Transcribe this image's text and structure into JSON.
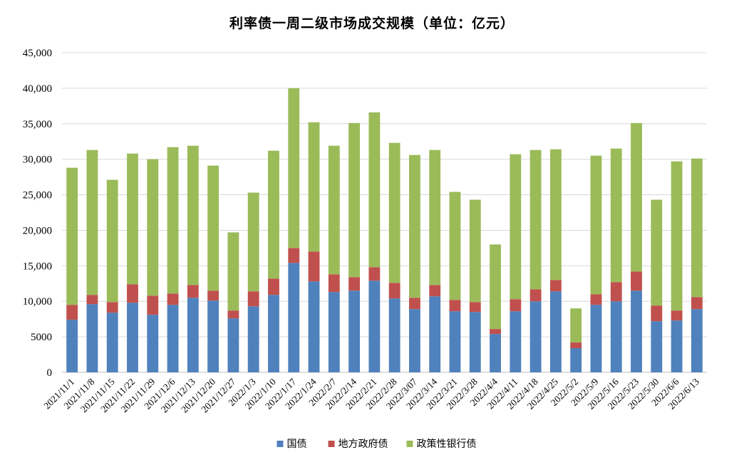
{
  "chart_data": {
    "type": "bar",
    "stacked": true,
    "title": "利率债一周二级市场成交规模（单位：亿元）",
    "categories": [
      "2021/11/1",
      "2021/11/8",
      "2021/11/15",
      "2021/11/22",
      "2021/11/29",
      "2021/12/6",
      "2021/12/13",
      "2021/12/20",
      "2021/12/27",
      "2022/1/3",
      "2022/1/10",
      "2022/1/17",
      "2022/1/24",
      "2022/2/7",
      "2022/2/14",
      "2022/2/21",
      "2022/2/28",
      "2022/3/07",
      "2022/3/14",
      "2022/3/21",
      "2022/3/28",
      "2022/4/4",
      "2022/4/11",
      "2022/4/18",
      "2022/4/25",
      "2022/5/2",
      "2022/5/9",
      "2022/5/16",
      "2022/5/23",
      "2022/5/30",
      "2022/6/6",
      "2022/6/13"
    ],
    "series": [
      {
        "name": "国债",
        "color": "#4f81bd",
        "values": [
          7400,
          9600,
          8400,
          9800,
          8100,
          9500,
          10500,
          10100,
          7600,
          9300,
          10900,
          15400,
          12800,
          11300,
          11500,
          12900,
          10400,
          8900,
          10700,
          8600,
          8500,
          5400,
          8600,
          10000,
          11400,
          3400,
          9500,
          10000,
          11500,
          7200,
          7300,
          8900
        ]
      },
      {
        "name": "地方政府债",
        "color": "#c0504d",
        "values": [
          2100,
          1300,
          1500,
          2600,
          2700,
          1600,
          1800,
          1400,
          1100,
          2100,
          2300,
          2100,
          4200,
          2500,
          1900,
          1900,
          2200,
          1600,
          1600,
          1600,
          1400,
          700,
          1700,
          1700,
          1600,
          800,
          1500,
          2700,
          2700,
          2200,
          1400,
          1700
        ]
      },
      {
        "name": "政策性银行债",
        "color": "#9bbb59",
        "values": [
          19300,
          20400,
          17200,
          18400,
          19200,
          20600,
          19600,
          17600,
          11000,
          13900,
          18000,
          22500,
          18200,
          18100,
          21700,
          21800,
          19700,
          20100,
          19000,
          15200,
          14400,
          11900,
          20400,
          19600,
          18400,
          4800,
          19500,
          18800,
          20900,
          14900,
          21000,
          19500
        ]
      }
    ],
    "ylim": [
      0,
      45000
    ],
    "yticks": [
      "0",
      "5000",
      "10,000",
      "15,000",
      "20,000",
      "25,000",
      "30,000",
      "35,000",
      "40,000",
      "45,000"
    ],
    "ytick_values": [
      0,
      5000,
      10000,
      15000,
      20000,
      25000,
      30000,
      35000,
      40000,
      45000
    ],
    "grid": true,
    "legend": "bottom"
  }
}
